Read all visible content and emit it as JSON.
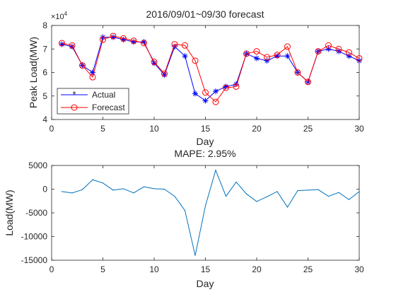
{
  "colors": {
    "actual": "#0000ff",
    "forecast": "#ff0000",
    "error": "#0072bd",
    "axis": "#262626"
  },
  "chart_data": [
    {
      "type": "line",
      "title": "2016/09/01~09/30 forecast",
      "xlabel": "Day",
      "ylabel": "Peak Load(MW)",
      "y_exponent_label": "×10",
      "y_exponent": "4",
      "xlim": [
        0,
        30
      ],
      "ylim": [
        4,
        8
      ],
      "xticks": [
        0,
        5,
        10,
        15,
        20,
        25,
        30
      ],
      "yticks": [
        4,
        5,
        6,
        7,
        8
      ],
      "grid": false,
      "legend_position": "lower-left",
      "x": [
        1,
        2,
        3,
        4,
        5,
        6,
        7,
        8,
        9,
        10,
        11,
        12,
        13,
        14,
        15,
        16,
        17,
        18,
        19,
        20,
        21,
        22,
        23,
        24,
        25,
        26,
        27,
        28,
        29,
        30
      ],
      "series": [
        {
          "name": "Actual",
          "marker": "star",
          "values": [
            7.2,
            7.1,
            6.3,
            6.0,
            7.5,
            7.5,
            7.4,
            7.3,
            7.3,
            6.4,
            5.9,
            7.1,
            6.7,
            5.1,
            4.8,
            5.2,
            5.4,
            5.5,
            6.8,
            6.6,
            6.5,
            6.7,
            6.7,
            6.0,
            5.6,
            6.9,
            7.0,
            6.9,
            6.7,
            6.5
          ]
        },
        {
          "name": "Forecast",
          "marker": "circle",
          "values": [
            7.25,
            7.15,
            6.3,
            5.8,
            7.4,
            7.55,
            7.45,
            7.35,
            7.25,
            6.45,
            5.95,
            7.2,
            7.15,
            6.5,
            5.15,
            4.75,
            5.35,
            5.4,
            6.8,
            6.9,
            6.65,
            6.75,
            7.1,
            6.0,
            5.6,
            6.9,
            7.15,
            7.0,
            6.85,
            6.6
          ]
        }
      ]
    },
    {
      "type": "line",
      "title": "MAPE: 2.95%",
      "xlabel": "Day",
      "ylabel": "Load(MW)",
      "xlim": [
        0,
        30
      ],
      "ylim": [
        -15000,
        5000
      ],
      "xticks": [
        0,
        5,
        10,
        15,
        20,
        25,
        30
      ],
      "yticks": [
        5000,
        0,
        -5000,
        -10000,
        -15000
      ],
      "grid": false,
      "x": [
        1,
        2,
        3,
        4,
        5,
        6,
        7,
        8,
        9,
        10,
        11,
        12,
        13,
        14,
        15,
        16,
        17,
        18,
        19,
        20,
        21,
        22,
        23,
        24,
        25,
        26,
        27,
        28,
        29,
        30
      ],
      "series": [
        {
          "values": [
            -500,
            -800,
            -100,
            2000,
            1300,
            -200,
            100,
            -800,
            500,
            100,
            0,
            -1500,
            -4500,
            -14000,
            -3500,
            4000,
            -1500,
            1500,
            -1000,
            -2600,
            -1600,
            -500,
            -3800,
            -300,
            -200,
            -100,
            -1500,
            -700,
            -2200,
            -500
          ]
        }
      ]
    }
  ]
}
